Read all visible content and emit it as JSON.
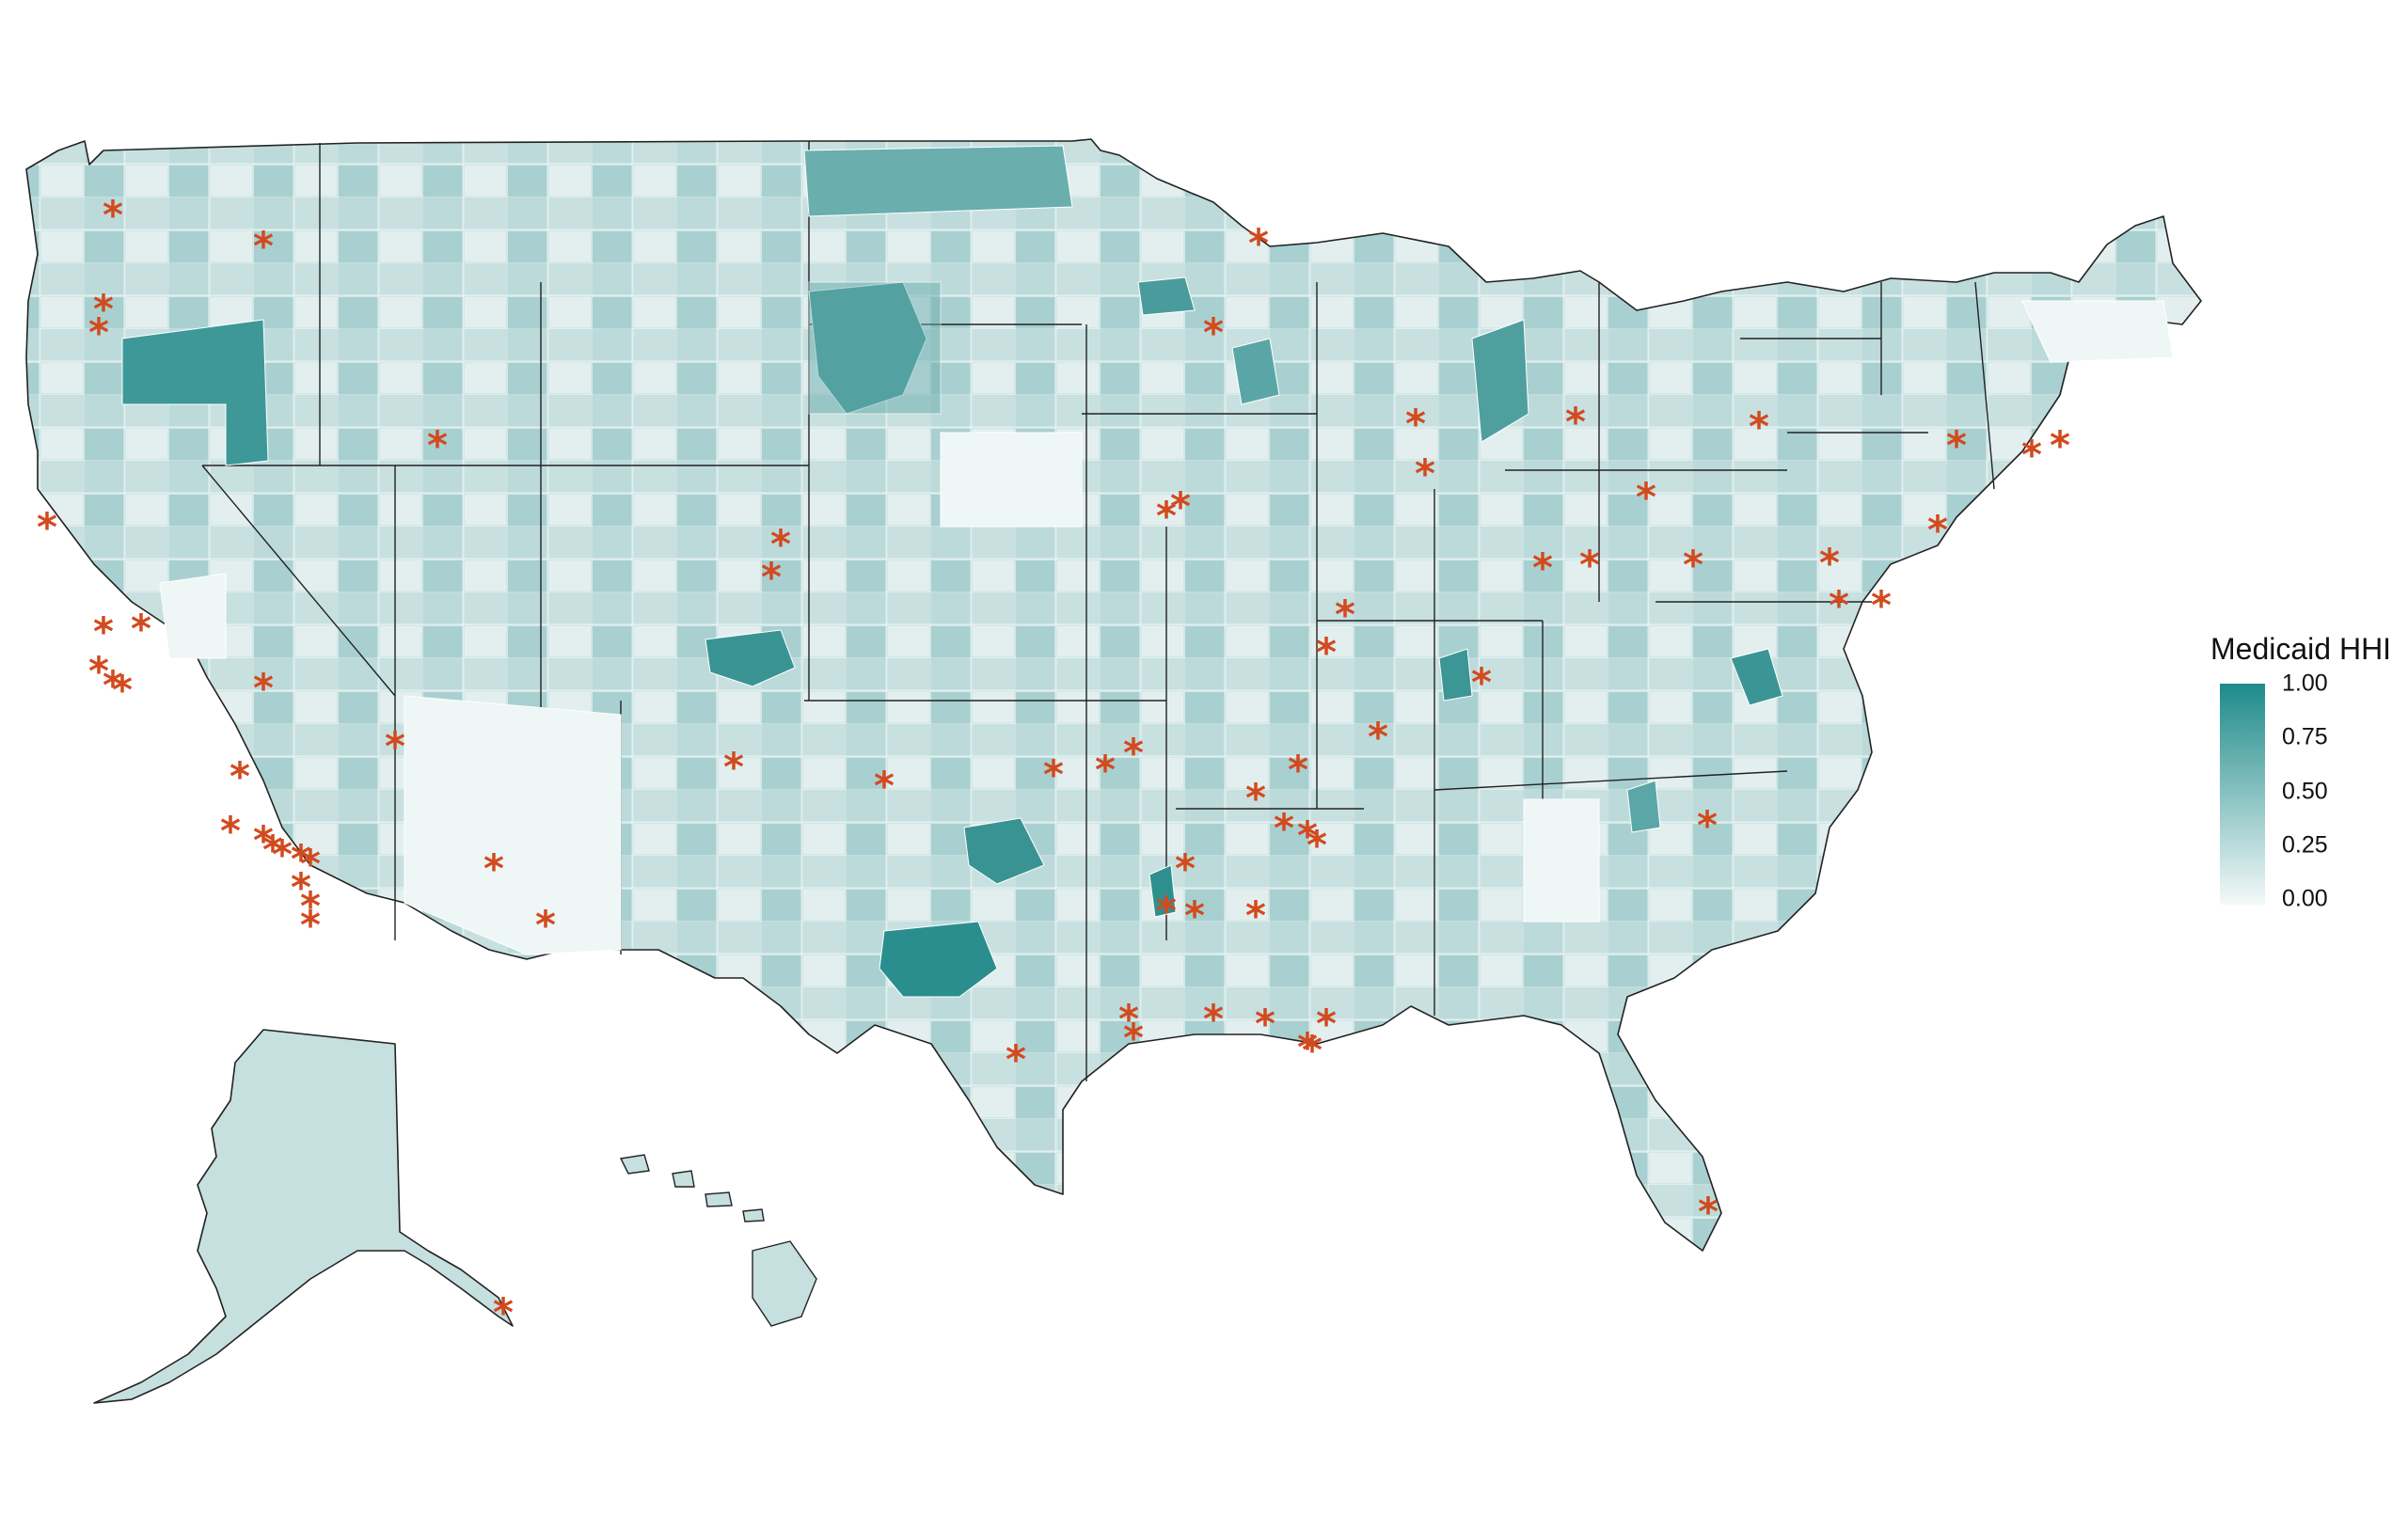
{
  "legend": {
    "title": "Medicaid HHI",
    "labels": [
      "1.00",
      "0.75",
      "0.50",
      "0.25",
      "0.00"
    ],
    "values": [
      1.0,
      0.75,
      0.5,
      0.25,
      0.0
    ],
    "color_high": "#1e8a8a",
    "color_low": "#f4f9f9"
  },
  "colors": {
    "marker": "#d24a1e",
    "border": "#222222",
    "region_fill_default": "#cfe3e3"
  },
  "markers": {
    "symbol": "*",
    "meaning": "market marker"
  }
}
